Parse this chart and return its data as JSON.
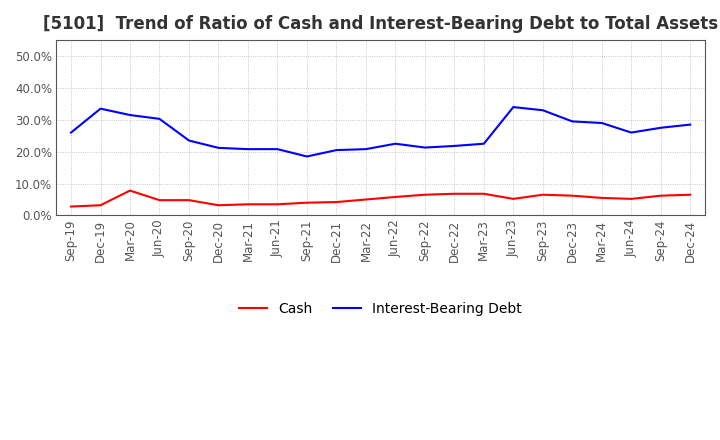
{
  "title": "[5101]  Trend of Ratio of Cash and Interest-Bearing Debt to Total Assets",
  "x_labels": [
    "Sep-19",
    "Dec-19",
    "Mar-20",
    "Jun-20",
    "Sep-20",
    "Dec-20",
    "Mar-21",
    "Jun-21",
    "Sep-21",
    "Dec-21",
    "Mar-22",
    "Jun-22",
    "Sep-22",
    "Dec-22",
    "Mar-23",
    "Jun-23",
    "Sep-23",
    "Dec-23",
    "Mar-24",
    "Jun-24",
    "Sep-24",
    "Dec-24"
  ],
  "cash": [
    2.8,
    3.2,
    7.8,
    4.8,
    4.8,
    3.2,
    3.5,
    3.5,
    4.0,
    4.2,
    5.0,
    5.8,
    6.5,
    6.8,
    6.8,
    5.2,
    6.5,
    6.2,
    5.5,
    5.2,
    6.2,
    6.5
  ],
  "debt": [
    26.0,
    33.5,
    31.5,
    30.3,
    23.5,
    21.2,
    20.8,
    20.8,
    18.5,
    20.5,
    20.8,
    22.5,
    21.3,
    21.8,
    22.5,
    34.0,
    33.0,
    29.5,
    29.0,
    26.0,
    27.5,
    28.5
  ],
  "cash_color": "#FF0000",
  "debt_color": "#0000FF",
  "background_color": "#FFFFFF",
  "plot_bg_color": "#FFFFFF",
  "grid_color": "#999999",
  "ylim": [
    0,
    55
  ],
  "yticks": [
    0,
    10,
    20,
    30,
    40,
    50
  ],
  "ytick_labels": [
    "0.0%",
    "10.0%",
    "20.0%",
    "30.0%",
    "40.0%",
    "50.0%"
  ],
  "legend_cash": "Cash",
  "legend_debt": "Interest-Bearing Debt",
  "title_fontsize": 12,
  "tick_fontsize": 8.5,
  "legend_fontsize": 10,
  "title_color": "#333333",
  "linewidth": 1.5
}
